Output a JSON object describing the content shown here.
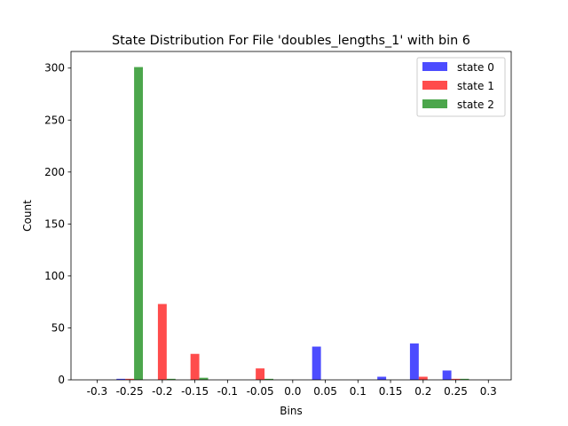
{
  "chart_data": {
    "type": "bar",
    "title": "State Distribution For File 'doubles_lengths_1' with bin 6",
    "xlabel": "Bins",
    "ylabel": "Count",
    "x_ticks": [
      "-0.3",
      "-0.25",
      "-0.2",
      "-0.15",
      "-0.1",
      "-0.05",
      "0.0",
      "0.05",
      "0.1",
      "0.15",
      "0.2",
      "0.25",
      "0.3"
    ],
    "x_tick_values": [
      -0.3,
      -0.25,
      -0.2,
      -0.15,
      -0.1,
      -0.05,
      0.0,
      0.05,
      0.1,
      0.15,
      0.2,
      0.25,
      0.3
    ],
    "y_ticks": [
      0,
      50,
      100,
      150,
      200,
      250,
      300
    ],
    "xlim": [
      -0.34,
      0.335
    ],
    "ylim": [
      0,
      316
    ],
    "bin_centers": [
      -0.3,
      -0.25,
      -0.2,
      -0.15,
      -0.1,
      -0.05,
      0.0,
      0.05,
      0.1,
      0.15,
      0.2,
      0.25,
      0.3
    ],
    "series": [
      {
        "name": "state 0",
        "color": "#0000ff",
        "values": [
          0,
          1,
          0,
          0,
          0,
          0,
          0,
          32,
          0,
          3,
          35,
          9,
          0
        ]
      },
      {
        "name": "state 1",
        "color": "#ff0000",
        "values": [
          0,
          1,
          73,
          25,
          0,
          11,
          0,
          0,
          0,
          0,
          3,
          1,
          0
        ]
      },
      {
        "name": "state 2",
        "color": "#008000",
        "values": [
          0,
          301,
          1,
          2,
          0,
          1,
          0,
          0,
          0,
          0,
          0,
          1,
          0
        ]
      }
    ],
    "legend_position": "top-right",
    "grid": false
  }
}
